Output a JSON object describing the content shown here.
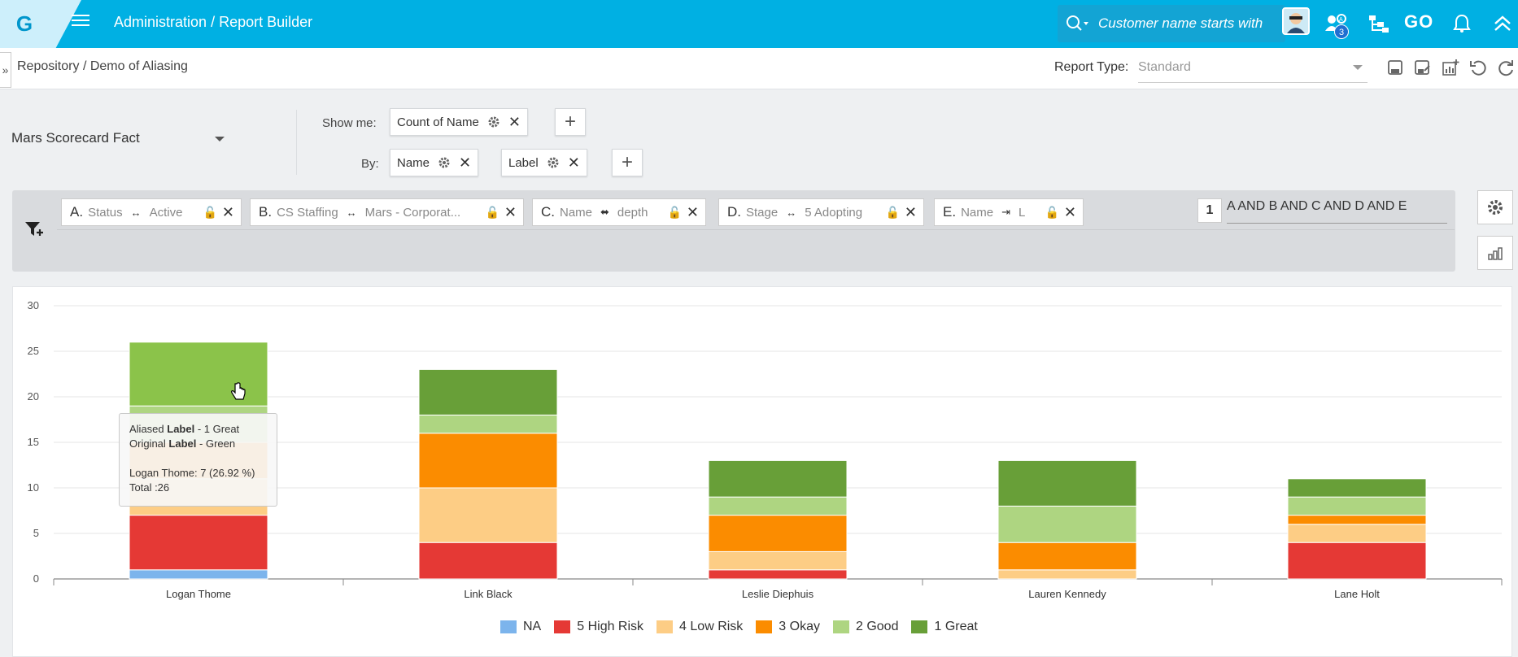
{
  "topbar": {
    "logo": "G",
    "breadcrumb_admin": "Administration",
    "breadcrumb_sep": "/",
    "breadcrumb_page": "Report Builder",
    "search_placeholder": "Customer name starts with",
    "notifications_count": "3",
    "go_label": "GO",
    "icons": [
      "hamburger-icon",
      "search-icon",
      "avatar",
      "users-icon",
      "org-chart-icon",
      "go-icon",
      "bell-icon",
      "chevron-up-icon"
    ]
  },
  "subbar": {
    "crumb_repo": "Repository",
    "crumb_sep": "/",
    "crumb_report": "Demo of Aliasing",
    "report_type_label": "Report Type:",
    "report_type_value": "Standard",
    "actions": [
      "save-icon",
      "save-as-icon",
      "add-chart-icon",
      "undo-icon",
      "refresh-icon"
    ]
  },
  "builder": {
    "object": "Mars Scorecard Fact",
    "show_me_label": "Show me:",
    "show_me_field": "Count of Name",
    "by_label": "By:",
    "by_fields": [
      "Name",
      "Label"
    ]
  },
  "filters": {
    "chips": [
      {
        "letter": "A.",
        "field": "Status",
        "op": "↔",
        "value": "Active"
      },
      {
        "letter": "B.",
        "field": "CS Staffing",
        "op": "↔",
        "value": "Mars - Corporat..."
      },
      {
        "letter": "C.",
        "field": "Name",
        "op": "⬌",
        "value": "depth"
      },
      {
        "letter": "D.",
        "field": "Stage",
        "op": "↔",
        "value": "5 Adopting"
      },
      {
        "letter": "E.",
        "field": "Name",
        "op": "⇥",
        "value": "L"
      }
    ],
    "logic_num": "1",
    "logic_expr": "A AND B AND C AND D AND E"
  },
  "chart_data": {
    "type": "bar",
    "stacked": true,
    "categories": [
      "Logan Thome",
      "Link Black",
      "Leslie Diephuis",
      "Lauren Kennedy",
      "Lane Holt"
    ],
    "series": [
      {
        "name": "NA",
        "color": "#7cb4ec",
        "values": [
          1,
          0,
          0,
          0,
          0
        ]
      },
      {
        "name": "5 High Risk",
        "color": "#e53935",
        "values": [
          6,
          4,
          1,
          0,
          4
        ]
      },
      {
        "name": "4 Low Risk",
        "color": "#fdcd85",
        "values": [
          4,
          6,
          2,
          1,
          2
        ]
      },
      {
        "name": "3 Okay",
        "color": "#fb8c00",
        "values": [
          4,
          6,
          4,
          3,
          1
        ]
      },
      {
        "name": "2 Good",
        "color": "#aed581",
        "values": [
          4,
          2,
          2,
          4,
          2
        ]
      },
      {
        "name": "1 Great",
        "color": "#689f38",
        "values": [
          7,
          5,
          4,
          5,
          2
        ]
      }
    ],
    "yticks": [
      "0",
      "5",
      "10",
      "15",
      "20",
      "25",
      "30"
    ],
    "ylim": [
      0,
      30
    ],
    "grid": true,
    "legend": "bottom-center",
    "hover_category": 0,
    "hover_series": 5,
    "hover_color": "#8bc34a"
  },
  "tooltip": {
    "line1_pre": "Aliased",
    "line1_bold": "Label",
    "line1_post": "- 1 Great",
    "line2_pre": "Original",
    "line2_bold": "Label",
    "line2_post": "- Green",
    "line3": "Logan Thome: 7 (26.92 %)",
    "line4": "Total :26"
  }
}
